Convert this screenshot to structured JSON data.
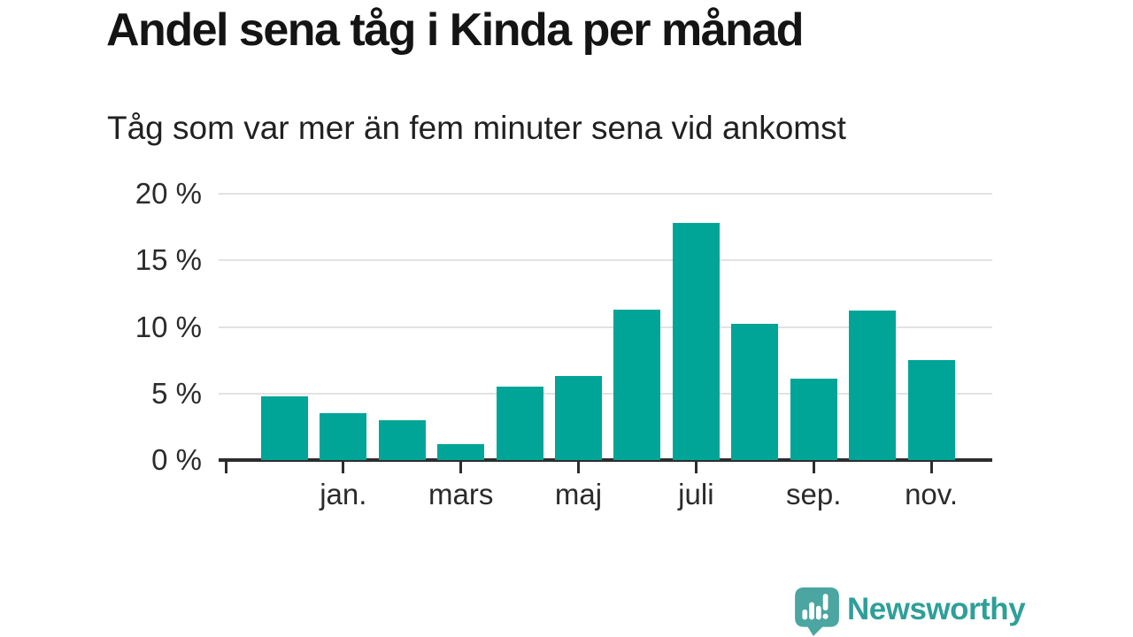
{
  "header": {
    "title": "Andel sena tåg i Kinda per månad",
    "subtitle": "Tåg som var mer än fem minuter sena vid ankomst"
  },
  "chart_data": {
    "type": "bar",
    "title": "Andel sena tåg i Kinda per månad",
    "subtitle": "Tåg som var mer än fem minuter sena vid ankomst",
    "unit": "%",
    "n_bars": 12,
    "values": [
      4.8,
      3.5,
      3.0,
      1.2,
      5.5,
      6.3,
      11.3,
      17.8,
      10.2,
      6.1,
      11.2,
      7.5
    ],
    "x_tick_labels": [
      "jan.",
      "mars",
      "maj",
      "juli",
      "sep.",
      "nov."
    ],
    "labeled_bar_indexes": [
      1,
      3,
      5,
      7,
      9,
      11
    ],
    "leading_unlabeled_tick": true,
    "y_tick_labels": [
      "20 %",
      "15 %",
      "10 %",
      "5 %",
      "0 %"
    ],
    "y_tick_values": [
      20,
      15,
      10,
      5,
      0
    ],
    "ylim": [
      0,
      20
    ],
    "grid": "horizontal",
    "legend": "none",
    "colors": {
      "bar": "#00a598",
      "gridline": "#e2e2e2",
      "axis": "#2d2d2d",
      "tick_text": "#2b2b2b",
      "title_text": "#141414"
    }
  },
  "footer": {
    "logo_text": "Newsworthy",
    "logo_text_color": "#2f9f98",
    "logo_icon_color": "#4ba5a0",
    "logo_icon": "speech-bubble-with-bar-chart-and-exclamation"
  }
}
